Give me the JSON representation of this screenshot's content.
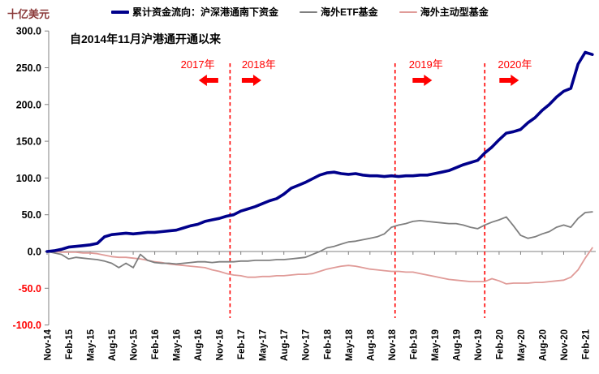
{
  "chart_data": {
    "type": "line",
    "ylabel": "十亿美元",
    "annotation": "自2014年11月沪港通开通以来",
    "ylim": [
      -100,
      300
    ],
    "grid": "off",
    "legend_position": "top",
    "y_ticks": [
      "300.0",
      "250.0",
      "200.0",
      "150.0",
      "100.0",
      "50.0",
      "0.0",
      "-50.0",
      "-100.0"
    ],
    "x_ticks": [
      "Nov-14",
      "Feb-15",
      "May-15",
      "Aug-15",
      "Nov-15",
      "Feb-16",
      "May-16",
      "Aug-16",
      "Nov-16",
      "Feb-17",
      "May-17",
      "Aug-17",
      "Nov-17",
      "Feb-18",
      "May-18",
      "Aug-18",
      "Nov-18",
      "Feb-19",
      "May-19",
      "Aug-19",
      "Nov-19",
      "Feb-20",
      "May-20",
      "Aug-20",
      "Nov-20",
      "Feb-21"
    ],
    "months": [
      "Nov-14",
      "Dec-14",
      "Jan-15",
      "Feb-15",
      "Mar-15",
      "Apr-15",
      "May-15",
      "Jun-15",
      "Jul-15",
      "Aug-15",
      "Sep-15",
      "Oct-15",
      "Nov-15",
      "Dec-15",
      "Jan-16",
      "Feb-16",
      "Mar-16",
      "Apr-16",
      "May-16",
      "Jun-16",
      "Jul-16",
      "Aug-16",
      "Sep-16",
      "Oct-16",
      "Nov-16",
      "Dec-16",
      "Jan-17",
      "Feb-17",
      "Mar-17",
      "Apr-17",
      "May-17",
      "Jun-17",
      "Jul-17",
      "Aug-17",
      "Sep-17",
      "Oct-17",
      "Nov-17",
      "Dec-17",
      "Jan-18",
      "Feb-18",
      "Mar-18",
      "Apr-18",
      "May-18",
      "Jun-18",
      "Jul-18",
      "Aug-18",
      "Sep-18",
      "Oct-18",
      "Nov-18",
      "Dec-18",
      "Jan-19",
      "Feb-19",
      "Mar-19",
      "Apr-19",
      "May-19",
      "Jun-19",
      "Jul-19",
      "Aug-19",
      "Sep-19",
      "Oct-19",
      "Nov-19",
      "Dec-19",
      "Jan-20",
      "Feb-20",
      "Mar-20",
      "Apr-20",
      "May-20",
      "Jun-20",
      "Jul-20",
      "Aug-20",
      "Sep-20",
      "Oct-20",
      "Nov-20",
      "Dec-20",
      "Jan-21",
      "Feb-21",
      "Mar-21"
    ],
    "series": [
      {
        "name": "累计资金流向：沪深港通南下资金",
        "color": "#00008B",
        "width": 3.6,
        "values": [
          0,
          1,
          3,
          6,
          7,
          8,
          9,
          11,
          20,
          23,
          24,
          25,
          24,
          25,
          26,
          26,
          27,
          28,
          29,
          32,
          35,
          37,
          41,
          43,
          45,
          48,
          50,
          55,
          58,
          61,
          65,
          69,
          72,
          78,
          86,
          90,
          94,
          99,
          104,
          107,
          108,
          106,
          105,
          106,
          104,
          103,
          103,
          102,
          103,
          102,
          103,
          103,
          104,
          104,
          106,
          108,
          110,
          114,
          118,
          121,
          124,
          134,
          142,
          152,
          161,
          163,
          166,
          175,
          182,
          192,
          200,
          210,
          218,
          222,
          255,
          271,
          268
        ]
      },
      {
        "name": "海外ETF基金",
        "color": "#7F7F7F",
        "width": 1.8,
        "values": [
          0,
          -2,
          -4,
          -10,
          -8,
          -9,
          -10,
          -11,
          -13,
          -16,
          -22,
          -16,
          -22,
          -4,
          -12,
          -15,
          -16,
          -16,
          -17,
          -16,
          -15,
          -14,
          -14,
          -15,
          -14,
          -14,
          -14,
          -13,
          -13,
          -12,
          -12,
          -12,
          -11,
          -11,
          -10,
          -9,
          -8,
          -4,
          0,
          5,
          7,
          10,
          13,
          14,
          16,
          18,
          20,
          24,
          33,
          36,
          38,
          41,
          42,
          41,
          40,
          39,
          38,
          38,
          36,
          33,
          31,
          36,
          40,
          43,
          47,
          35,
          22,
          18,
          20,
          24,
          27,
          33,
          36,
          33,
          45,
          53,
          54
        ]
      },
      {
        "name": "海外主动型基金",
        "color": "#E09B98",
        "width": 1.8,
        "values": [
          0,
          0,
          -1,
          -1,
          -1,
          -2,
          -2,
          -3,
          -5,
          -7,
          -8,
          -8,
          -9,
          -10,
          -12,
          -14,
          -15,
          -17,
          -18,
          -19,
          -20,
          -21,
          -22,
          -25,
          -27,
          -30,
          -32,
          -33,
          -35,
          -35,
          -34,
          -34,
          -33,
          -33,
          -32,
          -31,
          -31,
          -30,
          -27,
          -24,
          -22,
          -20,
          -19,
          -20,
          -22,
          -24,
          -25,
          -26,
          -27,
          -27,
          -28,
          -28,
          -30,
          -32,
          -34,
          -36,
          -38,
          -39,
          -40,
          -41,
          -41,
          -41,
          -37,
          -40,
          -44,
          -43,
          -43,
          -43,
          -42,
          -42,
          -41,
          -40,
          -39,
          -35,
          -25,
          -9,
          5
        ]
      }
    ],
    "dashed_lines_month_index": [
      25.5,
      48.5,
      61.0
    ],
    "year_markers": [
      {
        "label": "2017年",
        "arrow": "left",
        "label_month": 21.0,
        "arrow_month": 22.5
      },
      {
        "label": "2018年",
        "arrow": "right",
        "label_month": 29.5,
        "arrow_month": 28.5
      },
      {
        "label": "2019年",
        "arrow": "right",
        "label_month": 52.8,
        "arrow_month": 52.3
      },
      {
        "label": "2020年",
        "arrow": "right",
        "label_month": 65.2,
        "arrow_month": 64.4
      }
    ],
    "colors": {
      "axis": "#808080",
      "tick_label": "#000000",
      "negative_tick_label": "#FF0000",
      "marker_red": "#FF0000",
      "ylabel_color": "#8B3A3A"
    }
  }
}
